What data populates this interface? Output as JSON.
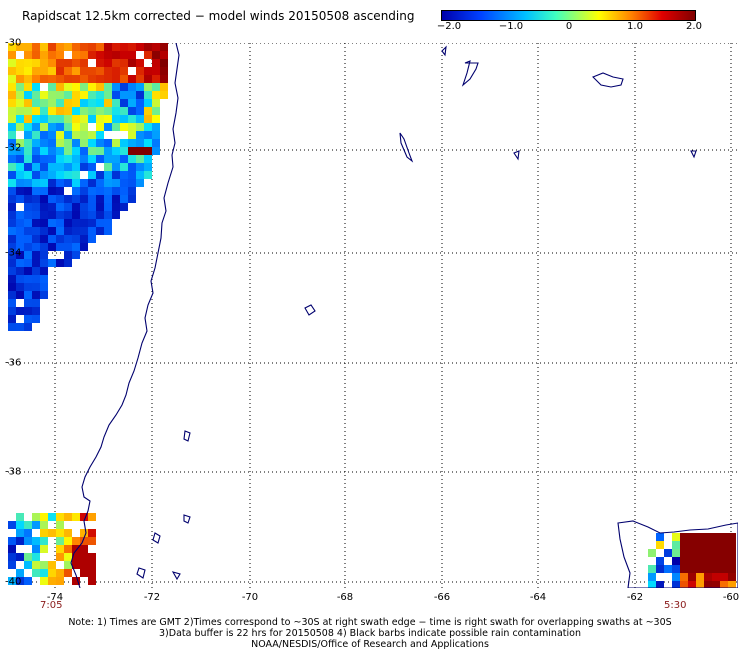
{
  "title": "Rapidscat 12.5km corrected − model winds 20150508 ascending",
  "colorbar": {
    "ticks": [
      "−2.0",
      "−1.0",
      "0",
      "1.0",
      "2.0"
    ],
    "colors": [
      "#0000aa",
      "#0060ff",
      "#00e0ff",
      "#ffff00",
      "#ff8000",
      "#cc0000",
      "#800000"
    ]
  },
  "map": {
    "lat_labels": [
      "-30",
      "-32",
      "-34",
      "-36",
      "-38",
      "-40"
    ],
    "lon_labels": [
      "-74",
      "-72",
      "-70",
      "-68",
      "-66",
      "-64",
      "-62",
      "-60"
    ],
    "time_left": "7:05",
    "time_right": "5:30",
    "coast_color": "#00006e",
    "grid_color": "#000000"
  },
  "footer": {
    "line1": "Note: 1) Times are GMT 2)Times correspond to ~30S at right swath edge − time is right swath for overlapping swaths at ~30S",
    "line2": "3)Data buffer is 22 hrs for 20150508 4) Black barbs indicate possible rain contamination",
    "line3": "NOAA/NESDIS/Office of Research and Applications"
  }
}
